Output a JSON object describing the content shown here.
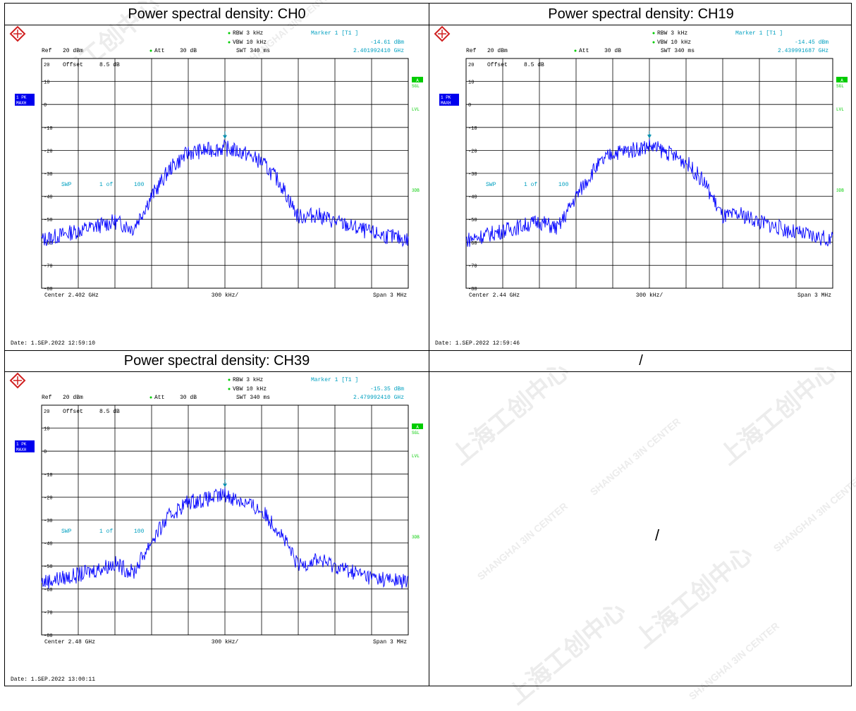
{
  "panels": [
    {
      "title": "Power spectral density: CH0",
      "header": {
        "rbw": "RBW 3 kHz",
        "vbw": "VBW 10 kHz",
        "swt": "SWT 340 ms",
        "att": "Att",
        "att_val": "30 dB",
        "ref": "Ref",
        "ref_val": "20 dBm",
        "marker": "Marker 1 [T1 ]",
        "marker_level": "-14.61 dBm",
        "marker_freq": "2.401992410 GHz"
      },
      "offset": "Offset",
      "offset_val": "8.5 dB",
      "trace_box": [
        "1 PK",
        "MAXH"
      ],
      "right_labels": {
        "a": "A",
        "sgl": "SGL",
        "lvl": "LVL",
        "sdb": "3DB"
      },
      "swp": [
        "SWP",
        "1 of",
        "100"
      ],
      "center": "Center 2.402 GHz",
      "per_div": "300 kHz/",
      "span": "Span 3 MHz",
      "date": "Date: 1.SEP.2022 12:59:10"
    },
    {
      "title": "Power spectral density: CH19",
      "header": {
        "rbw": "RBW 3 kHz",
        "vbw": "VBW 10 kHz",
        "swt": "SWT 340 ms",
        "att": "Att",
        "att_val": "30 dB",
        "ref": "Ref",
        "ref_val": "20 dBm",
        "marker": "Marker 1 [T1 ]",
        "marker_level": "-14.45 dBm",
        "marker_freq": "2.439991687 GHz"
      },
      "offset": "Offset",
      "offset_val": "8.5 dB",
      "trace_box": [
        "1 PK",
        "MAXH"
      ],
      "right_labels": {
        "a": "A",
        "sgl": "SGL",
        "lvl": "LVL",
        "sdb": "3DB"
      },
      "swp": [
        "SWP",
        "1 of",
        "100"
      ],
      "center": "Center 2.44 GHz",
      "per_div": "300 kHz/",
      "span": "Span 3 MHz",
      "date": "Date: 1.SEP.2022 12:59:46"
    },
    {
      "title": "Power spectral density: CH39",
      "header": {
        "rbw": "RBW 3 kHz",
        "vbw": "VBW 10 kHz",
        "swt": "SWT 340 ms",
        "att": "Att",
        "att_val": "30 dB",
        "ref": "Ref",
        "ref_val": "20 dBm",
        "marker": "Marker 1 [T1 ]",
        "marker_level": "-15.35 dBm",
        "marker_freq": "2.479992410 GHz"
      },
      "offset": "Offset",
      "offset_val": "8.5 dB",
      "trace_box": [
        "1 PK",
        "MAXH"
      ],
      "right_labels": {
        "a": "A",
        "sgl": "SGL",
        "lvl": "LVL",
        "sdb": "3DB"
      },
      "swp": [
        "SWP",
        "1 of",
        "100"
      ],
      "center": "Center 2.48 GHz",
      "per_div": "300 kHz/",
      "span": "Span 3 MHz",
      "date": "Date: 1.SEP.2022 13:00:11"
    }
  ],
  "empty_title": "/",
  "empty_body": "/",
  "watermark": [
    "上海工创中心",
    "SHANGHAI 3IN CENTER"
  ],
  "colors": {
    "trace": "#0000ff",
    "label": "#00a0c0",
    "box": "#0000ee",
    "green": "#00cc00",
    "grid": "#000000"
  },
  "chart_data": [
    {
      "type": "line",
      "title": "Power spectral density: CH0",
      "ylim": [
        -80,
        20
      ],
      "xlim_mhz": [
        -1.5,
        1.5
      ],
      "y_ticks": [
        "20",
        "10",
        "0",
        "-10",
        "-20",
        "-30",
        "-40",
        "-50",
        "-60",
        "-70",
        "-80"
      ],
      "envelope_x_mhz": [
        -1.5,
        -1.2,
        -0.9,
        -0.75,
        -0.6,
        -0.45,
        -0.3,
        -0.15,
        0.0,
        0.15,
        0.3,
        0.45,
        0.6,
        0.75,
        0.9,
        1.2,
        1.5
      ],
      "envelope_y_dbm": [
        -59,
        -55,
        -51,
        -54,
        -40,
        -28,
        -21,
        -20,
        -19,
        -21,
        -25,
        -34,
        -49,
        -48,
        -51,
        -56,
        -59
      ],
      "marker": {
        "x_mhz": 0.0,
        "y_dbm": -14.61
      }
    },
    {
      "type": "line",
      "title": "Power spectral density: CH19",
      "ylim": [
        -80,
        20
      ],
      "xlim_mhz": [
        -1.5,
        1.5
      ],
      "y_ticks": [
        "20",
        "10",
        "0",
        "-10",
        "-20",
        "-30",
        "-40",
        "-50",
        "-60",
        "-70",
        "-80"
      ],
      "envelope_x_mhz": [
        -1.5,
        -1.2,
        -0.9,
        -0.75,
        -0.6,
        -0.45,
        -0.3,
        -0.15,
        0.0,
        0.15,
        0.3,
        0.45,
        0.6,
        0.75,
        0.9,
        1.2,
        1.5
      ],
      "envelope_y_dbm": [
        -59,
        -55,
        -51,
        -54,
        -40,
        -28,
        -21,
        -20,
        -18,
        -21,
        -25,
        -34,
        -49,
        -48,
        -51,
        -56,
        -59
      ],
      "marker": {
        "x_mhz": 0.0,
        "y_dbm": -14.45
      }
    },
    {
      "type": "line",
      "title": "Power spectral density: CH39",
      "ylim": [
        -80,
        20
      ],
      "xlim_mhz": [
        -1.5,
        1.5
      ],
      "y_ticks": [
        "20",
        "10",
        "0",
        "-10",
        "-20",
        "-30",
        "-40",
        "-50",
        "-60",
        "-70",
        "-80"
      ],
      "envelope_x_mhz": [
        -1.5,
        -1.2,
        -0.9,
        -0.75,
        -0.6,
        -0.45,
        -0.3,
        -0.15,
        0.0,
        0.15,
        0.3,
        0.45,
        0.6,
        0.75,
        0.9,
        1.2,
        1.5
      ],
      "envelope_y_dbm": [
        -57,
        -54,
        -49,
        -53,
        -39,
        -28,
        -22,
        -21,
        -19,
        -22,
        -26,
        -35,
        -50,
        -47,
        -50,
        -55,
        -57
      ],
      "marker": {
        "x_mhz": 0.0,
        "y_dbm": -15.35
      }
    }
  ]
}
